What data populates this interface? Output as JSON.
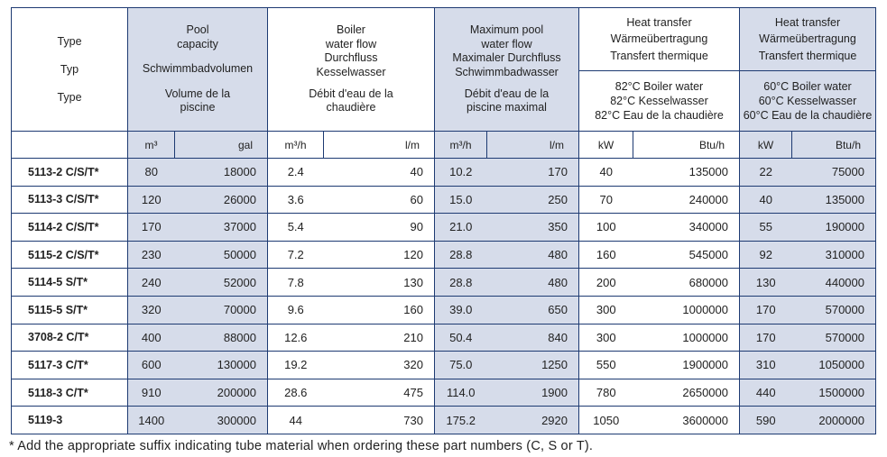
{
  "header": {
    "type_lines": [
      "Type",
      "Typ",
      "Type"
    ],
    "pool_capacity": [
      "Pool",
      "capacity",
      "",
      "Schwimmbadvolumen",
      "",
      "Volume de la",
      "piscine"
    ],
    "boiler_flow": [
      "Boiler",
      "water flow",
      "Durchfluss",
      "Kesselwasser",
      "Débit d'eau de la",
      "chaudière"
    ],
    "max_pool_flow": [
      "Maximum pool",
      "water flow",
      "Maximaler Durchfluss",
      "Schwimmbadwasser",
      "Débit d'eau de la",
      "piscine maximal"
    ],
    "heat82_title": [
      "Heat transfer",
      "Wärmeübertragung",
      "Transfert thermique"
    ],
    "heat82_sub": [
      "82°C Boiler water",
      "82°C Kesselwasser",
      "82°C Eau de la chaudière"
    ],
    "heat60_title": [
      "Heat transfer",
      "Wärmeübertragung",
      "Transfert thermique"
    ],
    "heat60_sub": [
      "60°C Boiler water",
      "60°C Kesselwasser",
      "60°C Eau de la chaudière"
    ]
  },
  "units": [
    "m³",
    "gal",
    "m³/h",
    "l/m",
    "m³/h",
    "l/m",
    "kW",
    "Btu/h",
    "kW",
    "Btu/h"
  ],
  "rows": [
    {
      "type": "5113-2 C/S/T*",
      "vals": [
        "80",
        "18000",
        "2.4",
        "40",
        "10.2",
        "170",
        "40",
        "135000",
        "22",
        "75000"
      ]
    },
    {
      "type": "5113-3 C/S/T*",
      "vals": [
        "120",
        "26000",
        "3.6",
        "60",
        "15.0",
        "250",
        "70",
        "240000",
        "40",
        "135000"
      ]
    },
    {
      "type": "5114-2 C/S/T*",
      "vals": [
        "170",
        "37000",
        "5.4",
        "90",
        "21.0",
        "350",
        "100",
        "340000",
        "55",
        "190000"
      ]
    },
    {
      "type": "5115-2 C/S/T*",
      "vals": [
        "230",
        "50000",
        "7.2",
        "120",
        "28.8",
        "480",
        "160",
        "545000",
        "92",
        "310000"
      ]
    },
    {
      "type": "5114-5 S/T*",
      "vals": [
        "240",
        "52000",
        "7.8",
        "130",
        "28.8",
        "480",
        "200",
        "680000",
        "130",
        "440000"
      ]
    },
    {
      "type": "5115-5 S/T*",
      "vals": [
        "320",
        "70000",
        "9.6",
        "160",
        "39.0",
        "650",
        "300",
        "1000000",
        "170",
        "570000"
      ]
    },
    {
      "type": "3708-2 C/T*",
      "vals": [
        "400",
        "88000",
        "12.6",
        "210",
        "50.4",
        "840",
        "300",
        "1000000",
        "170",
        "570000"
      ]
    },
    {
      "type": "5117-3 C/T*",
      "vals": [
        "600",
        "130000",
        "19.2",
        "320",
        "75.0",
        "1250",
        "550",
        "1900000",
        "310",
        "1050000"
      ]
    },
    {
      "type": "5118-3 C/T*",
      "vals": [
        "910",
        "200000",
        "28.6",
        "475",
        "114.0",
        "1900",
        "780",
        "2650000",
        "440",
        "1500000"
      ]
    },
    {
      "type": "5119-3",
      "vals": [
        "1400",
        "300000",
        "44",
        "730",
        "175.2",
        "2920",
        "1050",
        "3600000",
        "590",
        "2000000"
      ]
    }
  ],
  "footnote": "* Add the appropriate suffix indicating tube material when ordering these part numbers (C, S or T)."
}
